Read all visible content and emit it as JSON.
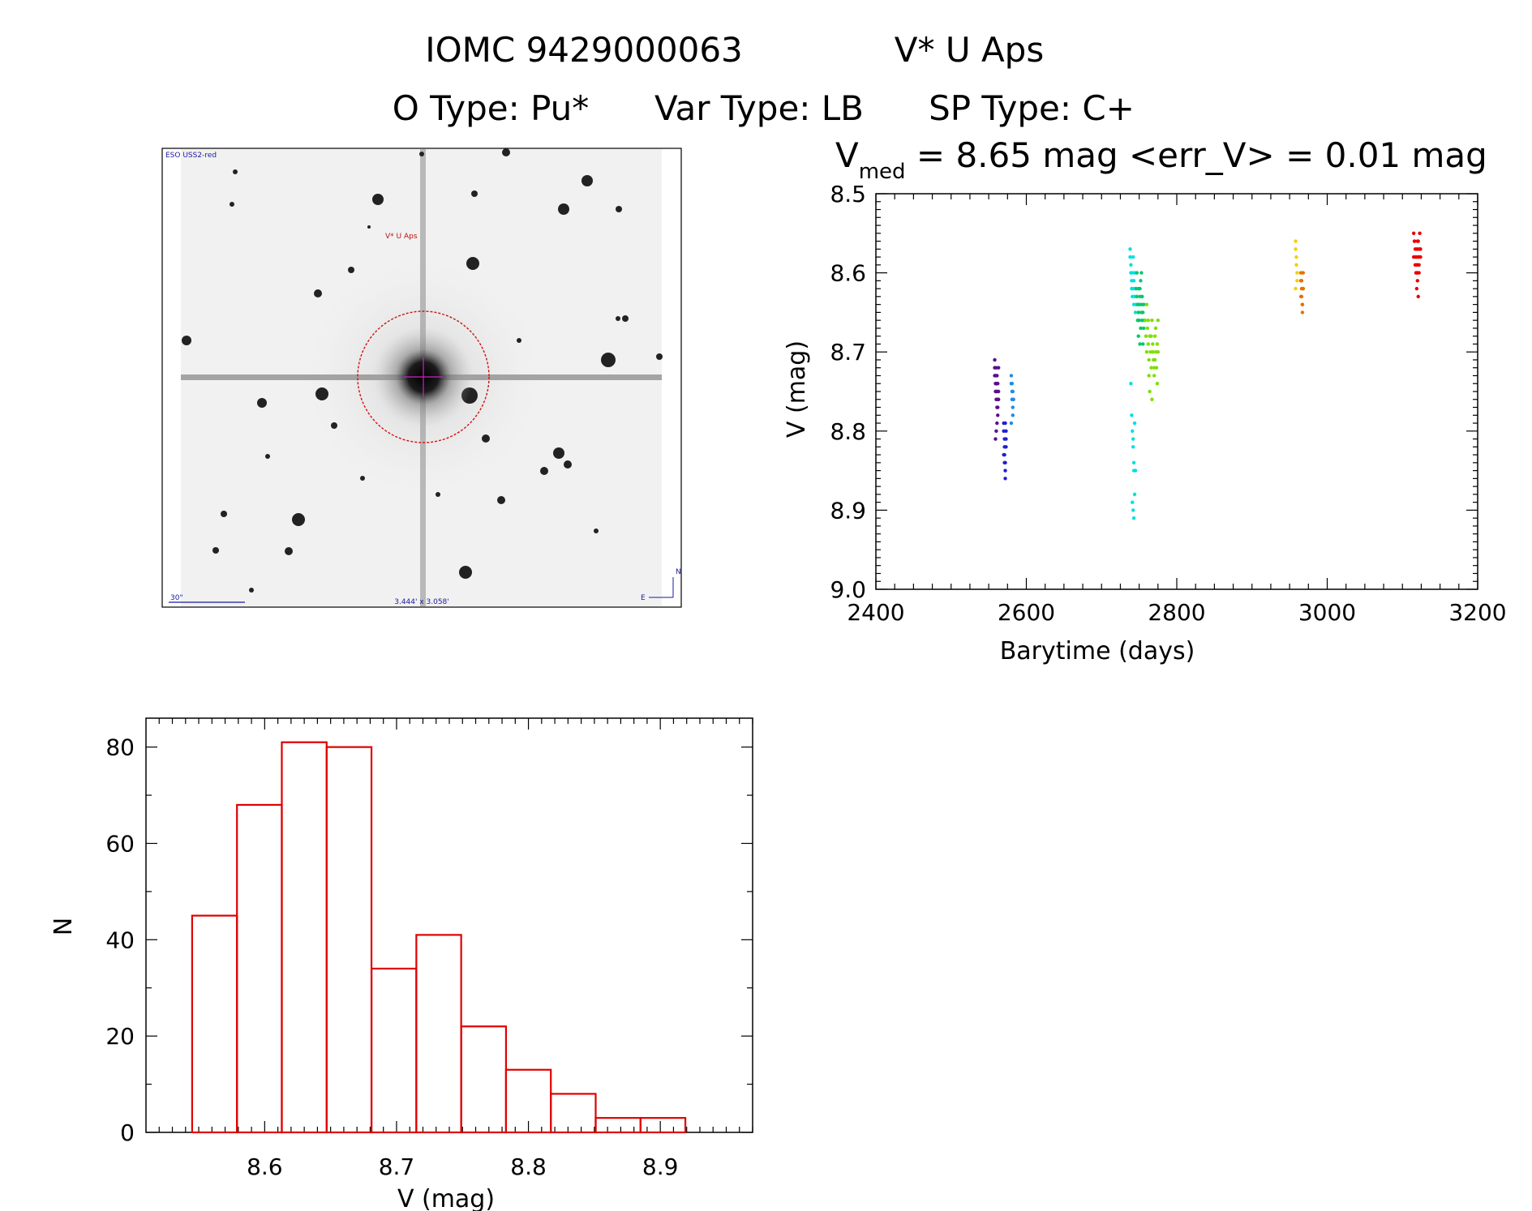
{
  "header": {
    "line1_id": "IOMC 9429000063",
    "line1_name": "V* U Aps",
    "line2_otype": "O Type: Pu*",
    "line2_vartype": "Var Type: LB",
    "line2_sptype": "SP Type: C+"
  },
  "image_panel": {
    "survey_label": "ESO USS2-red",
    "target_label": "V* U Aps",
    "scale_label": "30\"",
    "fov_label": "3.444' x 3.058'",
    "north_label": "N",
    "east_label": "E"
  },
  "chart_data": [
    {
      "type": "scatter",
      "title_main": "V",
      "title_sub": "med",
      "title_rest": " = 8.65 mag <err_V> = 0.01 mag",
      "xlabel": "Barytime (days)",
      "ylabel": "V (mag)",
      "xlim": [
        2400,
        3200
      ],
      "ylim": [
        9.0,
        8.5
      ],
      "y_inverted": true,
      "xticks": [
        "2400",
        "2600",
        "2800",
        "3000",
        "3200"
      ],
      "yticks": [
        "8.5",
        "8.6",
        "8.7",
        "8.8",
        "8.9",
        "9.0"
      ],
      "series": [
        {
          "color": "#5a0e8c",
          "x": [
            2558,
            2558,
            2559,
            2559,
            2559,
            2560,
            2560,
            2560,
            2561,
            2561,
            2561,
            2562,
            2562,
            2563,
            2563,
            2562,
            2561,
            2560,
            2559,
            2558,
            2563,
            2562,
            2561,
            2560
          ],
          "y": [
            8.71,
            8.72,
            8.73,
            8.74,
            8.75,
            8.76,
            8.72,
            8.74,
            8.75,
            8.77,
            8.73,
            8.76,
            8.74,
            8.75,
            8.72,
            8.78,
            8.79,
            8.8,
            8.81,
            8.73,
            8.76,
            8.77,
            8.74,
            8.75
          ]
        },
        {
          "color": "#2020d0",
          "x": [
            2570,
            2570,
            2571,
            2571,
            2571,
            2572,
            2572,
            2572,
            2573,
            2573,
            2573,
            2570,
            2571,
            2572
          ],
          "y": [
            8.79,
            8.8,
            8.81,
            8.82,
            8.83,
            8.84,
            8.85,
            8.86,
            8.82,
            8.81,
            8.8,
            8.83,
            8.84,
            8.79
          ]
        },
        {
          "color": "#1e8ce6",
          "x": [
            2580,
            2580,
            2581,
            2581,
            2582,
            2582,
            2582,
            2583,
            2580,
            2581
          ],
          "y": [
            8.73,
            8.74,
            8.75,
            8.76,
            8.77,
            8.78,
            8.75,
            8.76,
            8.79,
            8.74
          ]
        },
        {
          "color": "#00e0e0",
          "x": [
            2738,
            2738,
            2739,
            2739,
            2740,
            2740,
            2741,
            2741,
            2742,
            2742,
            2743,
            2743,
            2744,
            2744,
            2745,
            2745,
            2746,
            2739,
            2740,
            2741,
            2742,
            2743,
            2744,
            2741,
            2742,
            2743,
            2744,
            2745,
            2742,
            2743
          ],
          "y": [
            8.57,
            8.58,
            8.59,
            8.6,
            8.61,
            8.62,
            8.63,
            8.6,
            8.58,
            8.62,
            8.64,
            8.61,
            8.6,
            8.63,
            8.65,
            8.62,
            8.64,
            8.74,
            8.78,
            8.8,
            8.82,
            8.85,
            8.88,
            8.89,
            8.9,
            8.91,
            8.79,
            8.85,
            8.81,
            8.84
          ]
        },
        {
          "color": "#00c86e",
          "x": [
            2746,
            2747,
            2748,
            2749,
            2750,
            2751,
            2752,
            2753,
            2754,
            2755,
            2756,
            2747,
            2748,
            2749,
            2750,
            2751,
            2752,
            2753,
            2754,
            2755,
            2756,
            2757,
            2749,
            2751,
            2753
          ],
          "y": [
            8.62,
            8.63,
            8.64,
            8.65,
            8.66,
            8.63,
            8.61,
            8.64,
            8.66,
            8.65,
            8.67,
            8.6,
            8.66,
            8.68,
            8.64,
            8.62,
            8.67,
            8.65,
            8.63,
            8.69,
            8.64,
            8.66,
            8.62,
            8.69,
            8.6
          ]
        },
        {
          "color": "#7ee000",
          "x": [
            2758,
            2759,
            2760,
            2761,
            2762,
            2763,
            2764,
            2765,
            2766,
            2767,
            2768,
            2769,
            2770,
            2771,
            2772,
            2773,
            2774,
            2775,
            2760,
            2762,
            2764,
            2766,
            2768,
            2770,
            2772,
            2774,
            2763,
            2767,
            2771,
            2775
          ],
          "y": [
            8.66,
            8.68,
            8.7,
            8.67,
            8.69,
            8.71,
            8.68,
            8.7,
            8.72,
            8.66,
            8.69,
            8.71,
            8.73,
            8.68,
            8.7,
            8.72,
            8.74,
            8.7,
            8.64,
            8.66,
            8.75,
            8.68,
            8.7,
            8.72,
            8.67,
            8.69,
            8.73,
            8.76,
            8.71,
            8.66
          ]
        },
        {
          "color": "#f0d000",
          "x": [
            2958,
            2958,
            2959,
            2959,
            2960,
            2960,
            2958
          ],
          "y": [
            8.56,
            8.57,
            8.58,
            8.59,
            8.6,
            8.61,
            8.62
          ]
        },
        {
          "color": "#e87000",
          "x": [
            2965,
            2965,
            2966,
            2966,
            2967,
            2967,
            2968,
            2968,
            2965,
            2966,
            2967,
            2968
          ],
          "y": [
            8.6,
            8.61,
            8.62,
            8.63,
            8.64,
            8.65,
            8.62,
            8.6,
            8.63,
            8.61,
            8.64,
            8.62
          ]
        },
        {
          "color": "#e80000",
          "x": [
            3115,
            3116,
            3117,
            3118,
            3119,
            3120,
            3121,
            3122,
            3123,
            3124,
            3115,
            3117,
            3119,
            3121,
            3123,
            3116,
            3118,
            3120,
            3122,
            3124,
            3119,
            3121,
            3118,
            3120,
            3122,
            3119,
            3121,
            3120
          ],
          "y": [
            8.55,
            8.56,
            8.57,
            8.58,
            8.59,
            8.56,
            8.57,
            8.58,
            8.55,
            8.57,
            8.58,
            8.59,
            8.6,
            8.58,
            8.57,
            8.56,
            8.6,
            8.61,
            8.59,
            8.58,
            8.57,
            8.56,
            8.58,
            8.59,
            8.6,
            8.62,
            8.63,
            8.6
          ]
        }
      ]
    },
    {
      "type": "bar",
      "xlabel": "V (mag)",
      "ylabel": "N",
      "xlim": [
        8.51,
        8.97
      ],
      "ylim": [
        0,
        86
      ],
      "xticks": [
        "8.6",
        "8.7",
        "8.8",
        "8.9"
      ],
      "yticks": [
        "0",
        "20",
        "40",
        "60",
        "80"
      ],
      "bin_edges": [
        8.545,
        8.579,
        8.613,
        8.647,
        8.681,
        8.715,
        8.749,
        8.783,
        8.817,
        8.851,
        8.885,
        8.919
      ],
      "values": [
        45,
        68,
        81,
        80,
        34,
        41,
        22,
        13,
        8,
        3,
        3
      ],
      "bar_color": "#e00000"
    }
  ]
}
